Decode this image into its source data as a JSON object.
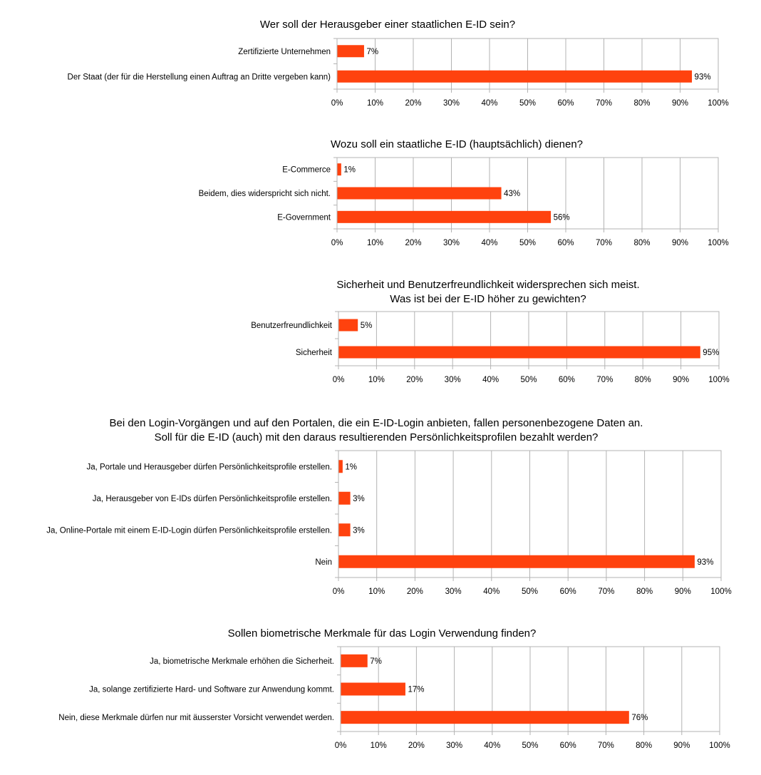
{
  "colors": {
    "bar": "#ff420e",
    "grid": "#b3b3b3",
    "text": "#000000"
  },
  "chart_data": [
    {
      "type": "bar",
      "orientation": "horizontal",
      "title": [
        "Wer soll der Herausgeber einer staatlichen E-ID sein?"
      ],
      "categories": [
        "Zertifizierte Unternehmen",
        "Der Staat (der für die Herstellung einen Auftrag an Dritte vergeben kann)"
      ],
      "values": [
        7,
        93
      ],
      "value_labels": [
        "7%",
        "93%"
      ],
      "xlim": [
        0,
        100
      ],
      "ticks": [
        "0%",
        "10%",
        "20%",
        "30%",
        "40%",
        "50%",
        "60%",
        "70%",
        "80%",
        "90%",
        "100%"
      ],
      "grid": true
    },
    {
      "type": "bar",
      "orientation": "horizontal",
      "title": [
        "Wozu soll ein staatliche E-ID (hauptsächlich) dienen?"
      ],
      "categories": [
        "E-Commerce",
        "Beidem, dies widerspricht sich nicht.",
        "E-Government"
      ],
      "values": [
        1,
        43,
        56
      ],
      "value_labels": [
        "1%",
        "43%",
        "56%"
      ],
      "xlim": [
        0,
        100
      ],
      "ticks": [
        "0%",
        "10%",
        "20%",
        "30%",
        "40%",
        "50%",
        "60%",
        "70%",
        "80%",
        "90%",
        "100%"
      ],
      "grid": true
    },
    {
      "type": "bar",
      "orientation": "horizontal",
      "title": [
        "Sicherheit und Benutzerfreundlichkeit widersprechen sich meist.",
        "Was ist bei der E-ID höher zu gewichten?"
      ],
      "categories": [
        "Benutzerfreundlichkeit",
        "Sicherheit"
      ],
      "values": [
        5,
        95
      ],
      "value_labels": [
        "5%",
        "95%"
      ],
      "xlim": [
        0,
        100
      ],
      "ticks": [
        "0%",
        "10%",
        "20%",
        "30%",
        "40%",
        "50%",
        "60%",
        "70%",
        "80%",
        "90%",
        "100%"
      ],
      "grid": true
    },
    {
      "type": "bar",
      "orientation": "horizontal",
      "title": [
        "Bei den Login-Vorgängen und auf den Portalen, die ein E-ID-Login anbieten, fallen personenbezogene Daten an.",
        "Soll für die E-ID (auch) mit den daraus resultierenden Persönlichkeitsprofilen bezahlt werden?"
      ],
      "categories": [
        "Ja, Portale und Herausgeber dürfen Persönlichkeitsprofile erstellen.",
        "Ja, Herausgeber von E-IDs dürfen Persönlichkeitsprofile erstellen.",
        "Ja, Online-Portale mit einem E-ID-Login dürfen Persönlichkeitsprofile erstellen.",
        "Nein"
      ],
      "values": [
        1,
        3,
        3,
        93
      ],
      "value_labels": [
        "1%",
        "3%",
        "3%",
        "93%"
      ],
      "xlim": [
        0,
        100
      ],
      "ticks": [
        "0%",
        "10%",
        "20%",
        "30%",
        "40%",
        "50%",
        "60%",
        "70%",
        "80%",
        "90%",
        "100%"
      ],
      "grid": true
    },
    {
      "type": "bar",
      "orientation": "horizontal",
      "title": [
        "Sollen biometrische Merkmale für das Login Verwendung finden?"
      ],
      "categories": [
        "Ja, biometrische Merkmale erhöhen die Sicherheit.",
        "Ja, solange zertifizierte Hard- und Software zur Anwendung kommt.",
        "Nein, diese Merkmale dürfen nur mit äusserster Vorsicht verwendet werden."
      ],
      "values": [
        7,
        17,
        76
      ],
      "value_labels": [
        "7%",
        "17%",
        "76%"
      ],
      "xlim": [
        0,
        100
      ],
      "ticks": [
        "0%",
        "10%",
        "20%",
        "30%",
        "40%",
        "50%",
        "60%",
        "70%",
        "80%",
        "90%",
        "100%"
      ],
      "grid": true
    }
  ]
}
